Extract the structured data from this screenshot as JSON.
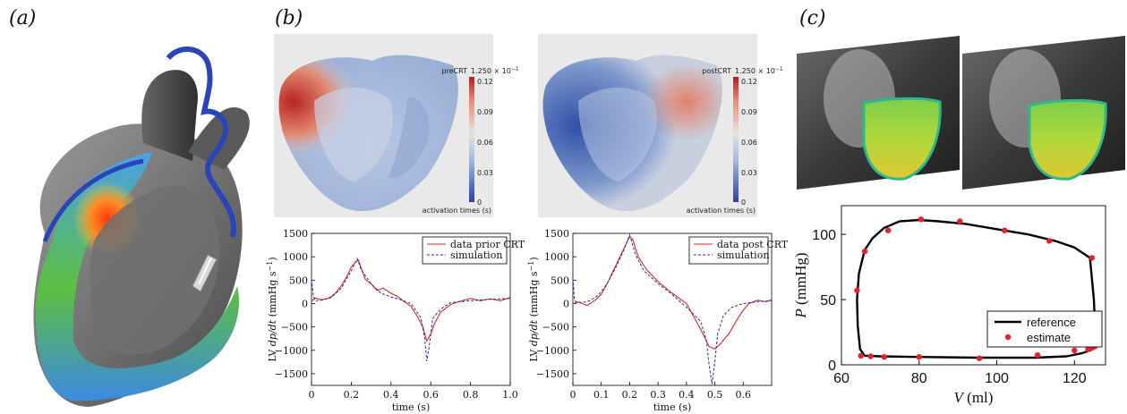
{
  "panels": {
    "a": "(a)",
    "b": "(b)",
    "c": "(c)"
  },
  "colorbars": [
    {
      "title": "preCRT",
      "max_label": "1.250 × 10",
      "max_exp": "−1",
      "ticks": [
        "0.12",
        "0.09",
        "0.06",
        "0.03",
        "0"
      ],
      "xlabel": "activation times (s)"
    },
    {
      "title": "postCRT",
      "max_label": "1.250 × 10",
      "max_exp": "−1",
      "ticks": [
        "0.12",
        "0.09",
        "0.06",
        "0.03",
        "0"
      ],
      "xlabel": "activation times (s)"
    }
  ],
  "chart_data": [
    {
      "type": "line",
      "ylabel_parts": [
        "LV ",
        "dp/dt",
        " (mmHg s",
        "−1",
        ")"
      ],
      "xlabel": "time (s)",
      "xlim": [
        0,
        1.0
      ],
      "ylim": [
        -1750,
        1500
      ],
      "xticks": [
        "0",
        "0.2",
        "0.4",
        "0.6",
        "0.8",
        "1.0"
      ],
      "yticks": [
        "1500",
        "1000",
        "500",
        "0",
        "−500",
        "−1000",
        "−1500"
      ],
      "series": [
        {
          "name": "data prior CRT",
          "color": "#e8202a",
          "style": "solid",
          "x": [
            0,
            0.02,
            0.05,
            0.08,
            0.1,
            0.12,
            0.15,
            0.18,
            0.2,
            0.22,
            0.235,
            0.25,
            0.27,
            0.3,
            0.33,
            0.36,
            0.4,
            0.43,
            0.46,
            0.5,
            0.53,
            0.56,
            0.57,
            0.58,
            0.6,
            0.62,
            0.65,
            0.7,
            0.75,
            0.8,
            0.85,
            0.9,
            0.95,
            1.0
          ],
          "y": [
            50,
            120,
            80,
            110,
            150,
            220,
            380,
            600,
            780,
            880,
            930,
            760,
            520,
            420,
            280,
            330,
            220,
            160,
            60,
            -60,
            -260,
            -500,
            -650,
            -800,
            -650,
            -420,
            -180,
            -20,
            50,
            110,
            60,
            100,
            60,
            130
          ]
        },
        {
          "name": "simulation",
          "color": "#1a2fb0",
          "style": "dashed",
          "x": [
            0,
            0.01,
            0.02,
            0.05,
            0.1,
            0.15,
            0.2,
            0.23,
            0.25,
            0.3,
            0.35,
            0.4,
            0.45,
            0.5,
            0.55,
            0.57,
            0.58,
            0.59,
            0.6,
            0.61,
            0.65,
            0.7,
            0.8,
            0.9,
            1.0
          ],
          "y": [
            520,
            150,
            60,
            70,
            130,
            330,
            700,
            960,
            720,
            420,
            220,
            140,
            80,
            0,
            -300,
            -750,
            -1230,
            -980,
            -650,
            -320,
            -120,
            20,
            60,
            90,
            110
          ]
        }
      ],
      "legend": "top-right"
    },
    {
      "type": "line",
      "ylabel_parts": [
        "LV ",
        "dp/dt",
        " (mmHg s",
        "−1",
        ")"
      ],
      "xlabel": "time (s)",
      "xlim": [
        0,
        0.7
      ],
      "ylim": [
        -1750,
        1500
      ],
      "xticks": [
        "0",
        "0.1",
        "0.2",
        "0.3",
        "0.4",
        "0.5",
        "0.6"
      ],
      "yticks": [
        "1500",
        "1000",
        "500",
        "0",
        "−500",
        "−1000",
        "−1500"
      ],
      "series": [
        {
          "name": "data post CRT",
          "color": "#e8202a",
          "style": "solid",
          "x": [
            0,
            0.02,
            0.05,
            0.08,
            0.1,
            0.12,
            0.15,
            0.18,
            0.2,
            0.21,
            0.23,
            0.26,
            0.3,
            0.35,
            0.4,
            0.45,
            0.48,
            0.5,
            0.52,
            0.55,
            0.58,
            0.6,
            0.62,
            0.65,
            0.68,
            0.7
          ],
          "y": [
            0,
            30,
            -40,
            80,
            200,
            420,
            800,
            1180,
            1430,
            1380,
            1000,
            720,
            470,
            220,
            0,
            -550,
            -920,
            -970,
            -860,
            -640,
            -330,
            -140,
            0,
            70,
            40,
            80
          ]
        },
        {
          "name": "simulation",
          "color": "#1a2fb0",
          "style": "dashed",
          "x": [
            0,
            0.005,
            0.01,
            0.03,
            0.06,
            0.09,
            0.12,
            0.15,
            0.18,
            0.2,
            0.22,
            0.25,
            0.3,
            0.35,
            0.4,
            0.45,
            0.47,
            0.48,
            0.49,
            0.5,
            0.51,
            0.53,
            0.56,
            0.6,
            0.65,
            0.7
          ],
          "y": [
            540,
            120,
            40,
            20,
            60,
            180,
            420,
            760,
            1150,
            1470,
            1050,
            700,
            430,
            190,
            -80,
            -380,
            -780,
            -1320,
            -1720,
            -1240,
            -650,
            -260,
            -80,
            0,
            40,
            60
          ]
        }
      ],
      "legend": "top-right"
    },
    {
      "type": "line",
      "xlabel_parts": [
        "V",
        " (ml)"
      ],
      "ylabel_parts": [
        "P",
        " (mmHg)"
      ],
      "xlim": [
        60,
        128
      ],
      "ylim": [
        0,
        122
      ],
      "xticks": [
        "60",
        "80",
        "100",
        "120"
      ],
      "yticks": [
        "0",
        "50",
        "100"
      ],
      "series": [
        {
          "name": "reference",
          "color": "#000000",
          "style": "solid",
          "x": [
            125.5,
            125,
            124,
            120,
            115,
            108,
            100,
            92,
            85,
            80,
            75,
            71,
            68,
            66,
            64.5,
            64,
            64.2,
            64.8,
            66,
            70,
            80,
            95,
            110,
            118,
            122,
            124,
            125.5
          ],
          "y": [
            14,
            50,
            82,
            90,
            95,
            100,
            104,
            108,
            110,
            111,
            110,
            105,
            97,
            88,
            70,
            50,
            30,
            12,
            7,
            6.5,
            6,
            5.5,
            5.5,
            6.5,
            9,
            11,
            14
          ]
        },
        {
          "name": "estimate",
          "color": "#e8202a",
          "style": "markers",
          "x": [
            124.5,
            113.5,
            102,
            90.5,
            80.5,
            72,
            66,
            64,
            65,
            67.5,
            71,
            80,
            95.5,
            110.5,
            120,
            123.5,
            124.5,
            125.2
          ],
          "y": [
            82,
            95,
            103,
            110,
            111.5,
            103,
            87,
            57,
            7,
            6.5,
            6,
            6,
            5,
            7.5,
            11,
            12,
            13,
            14
          ]
        }
      ],
      "legend": "bottom-right"
    }
  ]
}
